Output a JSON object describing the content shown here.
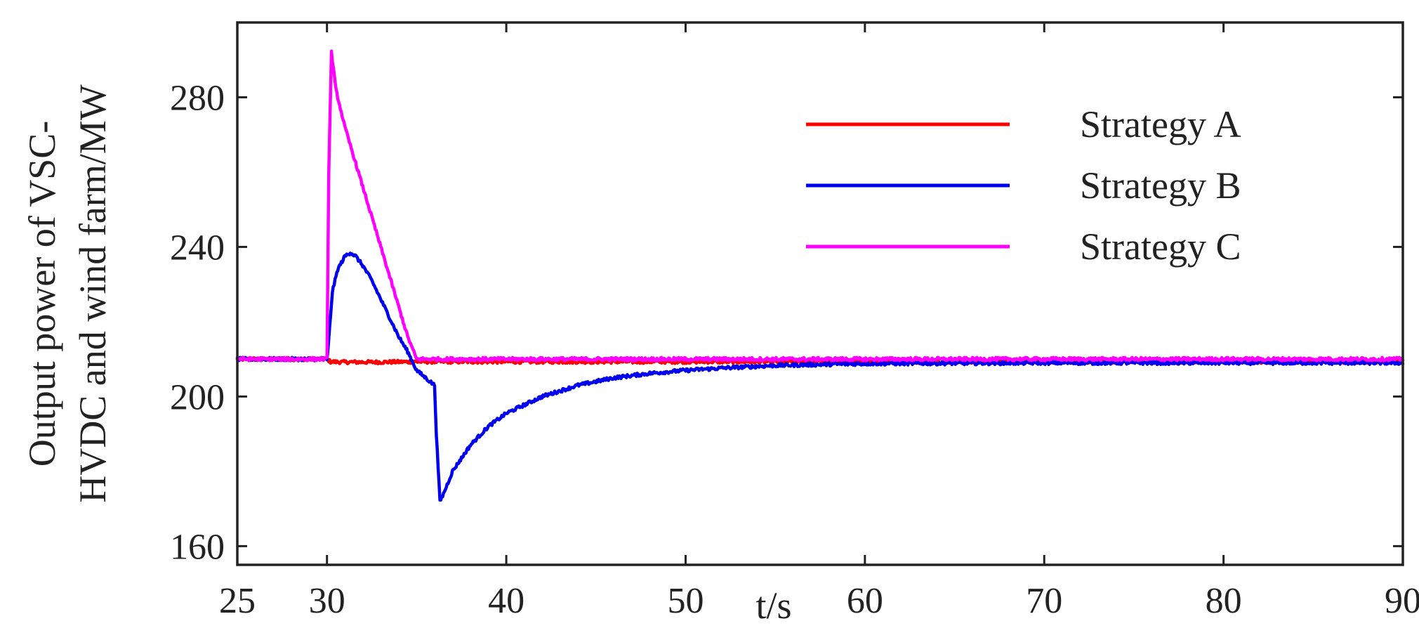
{
  "chart_data": {
    "type": "line",
    "title": "",
    "xlabel": "t/s",
    "ylabel_lines": [
      "Output power of VSC-",
      "HVDC and wind farm/MW"
    ],
    "xlim": [
      25,
      90
    ],
    "ylim": [
      155,
      300
    ],
    "xticks": [
      25,
      30,
      40,
      50,
      60,
      70,
      80,
      90
    ],
    "xtick_labels": [
      "25",
      "30",
      "40",
      "50",
      "60",
      "70",
      "80",
      "90"
    ],
    "yticks": [
      160,
      200,
      240,
      280
    ],
    "ytick_labels": [
      "160",
      "200",
      "240",
      "280"
    ],
    "grid": false,
    "legend_position": "top-right",
    "series": [
      {
        "name": "Strategy A",
        "color": "#ff0000",
        "x": [
          25,
          30,
          30.2,
          31,
          33,
          35,
          40,
          50,
          60,
          90
        ],
        "y": [
          210,
          210,
          209.3,
          209.2,
          209.2,
          209.3,
          209.3,
          209.3,
          209.3,
          209.3
        ]
      },
      {
        "name": "Strategy B",
        "color": "#0000ee",
        "x": [
          25,
          30,
          30.05,
          30.3,
          30.6,
          31,
          31.3,
          31.6,
          32,
          32.5,
          33,
          33.5,
          34,
          34.5,
          35,
          35.5,
          36,
          36.1,
          36.3,
          36.5,
          37,
          38,
          39,
          40,
          42,
          44,
          46,
          48,
          50,
          52,
          55,
          60,
          70,
          80,
          90
        ],
        "y": [
          210,
          210,
          212,
          228,
          234,
          237.5,
          238.5,
          237.5,
          235,
          231,
          226,
          221,
          216,
          212,
          207,
          205,
          203,
          190,
          172,
          174,
          180,
          187,
          192,
          195.5,
          200,
          203,
          205,
          206.2,
          207,
          207.6,
          208.3,
          208.8,
          209,
          209,
          209
        ]
      },
      {
        "name": "Strategy C",
        "color": "#ff00ff",
        "x": [
          25,
          30,
          30.1,
          30.25,
          30.5,
          31,
          31.5,
          32,
          32.5,
          33,
          33.5,
          34,
          34.5,
          35,
          36,
          40,
          50,
          60,
          70,
          80,
          90
        ],
        "y": [
          210,
          210,
          260,
          292,
          282,
          272,
          264,
          256,
          248,
          240,
          232,
          224,
          216,
          210,
          210,
          210,
          210,
          210,
          210,
          210,
          210
        ]
      }
    ]
  }
}
